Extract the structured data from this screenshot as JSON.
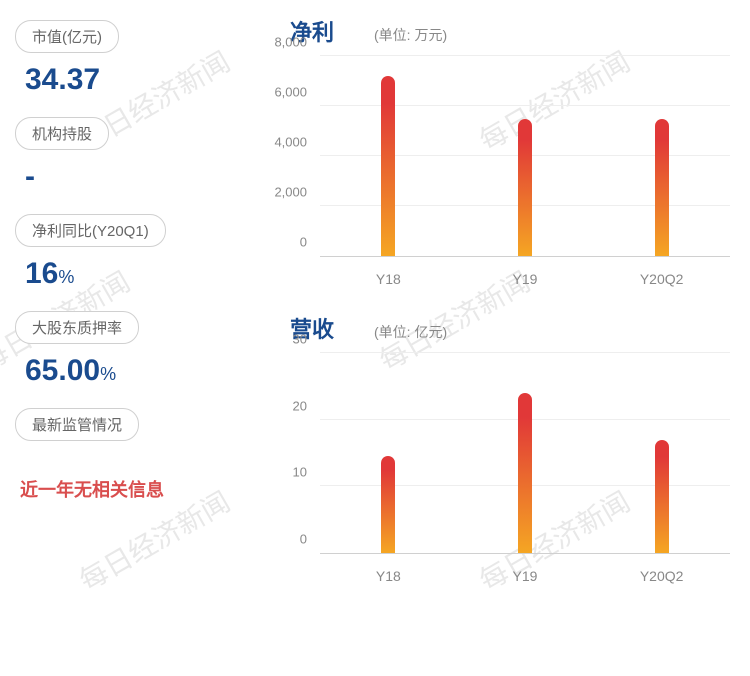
{
  "watermark_text": "每日经济新闻",
  "metrics": [
    {
      "label": "市值(亿元)",
      "value": "34.37",
      "unit": ""
    },
    {
      "label": "机构持股",
      "value": "-",
      "unit": ""
    },
    {
      "label": "净利同比(Y20Q1)",
      "value": "16",
      "unit": "%"
    },
    {
      "label": "大股东质押率",
      "value": "65.00",
      "unit": "%"
    },
    {
      "label": "最新监管情况",
      "value": "",
      "unit": ""
    }
  ],
  "footer": "近一年无相关信息",
  "chart1": {
    "title": "净利",
    "unit_text": "(单位: 万元)",
    "categories": [
      "Y18",
      "Y19",
      "Y20Q2"
    ],
    "values": [
      7200,
      5500,
      5500
    ],
    "ymax": 8000,
    "ymin": 0,
    "ytick_step": 2000,
    "ytick_labels": [
      "0",
      "2,000",
      "4,000",
      "6,000",
      "8,000"
    ],
    "bar_gradient_top": "#e13838",
    "bar_gradient_bottom": "#f5a623",
    "axis_color": "#888888",
    "grid_color": "#eeeeee"
  },
  "chart2": {
    "title": "营收",
    "unit_text": "(单位: 亿元)",
    "categories": [
      "Y18",
      "Y19",
      "Y20Q2"
    ],
    "values": [
      14.5,
      24,
      17
    ],
    "ymax": 30,
    "ymin": 0,
    "ytick_step": 10,
    "ytick_labels": [
      "0",
      "10",
      "20",
      "30"
    ],
    "bar_gradient_top": "#e13838",
    "bar_gradient_bottom": "#f5a623",
    "axis_color": "#888888",
    "grid_color": "#eeeeee"
  },
  "colors": {
    "title_color": "#1a4b8e",
    "value_color": "#1a4b8e",
    "label_text": "#666666",
    "footer_color": "#d94e4e",
    "pill_border": "#d0d0d0"
  }
}
